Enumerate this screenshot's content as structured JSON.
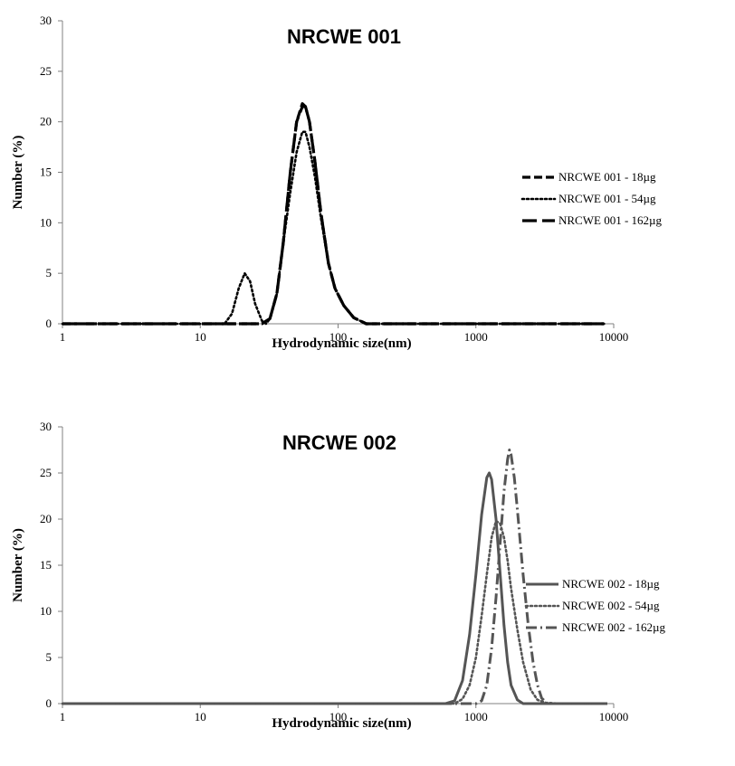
{
  "chart_data": [
    {
      "type": "line",
      "title": "NRCWE 001",
      "xlabel": "Hydrodynamic  size(nm)",
      "ylabel": "Number  (%)",
      "x_scale": "log",
      "xlim": [
        1,
        10000
      ],
      "ylim": [
        0,
        30
      ],
      "x_ticks": [
        "1",
        "10",
        "100",
        "1000",
        "10000"
      ],
      "y_ticks": [
        "0",
        "5",
        "10",
        "15",
        "20",
        "25",
        "30"
      ],
      "grid": false,
      "legend_position": "right",
      "series": [
        {
          "name": "NRCWE 001 - 18µg",
          "color": "#000000",
          "style": "dashed",
          "x": [
            1,
            10,
            28,
            32,
            36,
            40,
            45,
            50,
            55,
            58,
            62,
            68,
            75,
            85,
            95,
            110,
            130,
            160,
            200,
            300,
            1000,
            8500
          ],
          "y": [
            0,
            0,
            0,
            0.5,
            3,
            8,
            15,
            20,
            21.8,
            21.5,
            20,
            16,
            11,
            6,
            3.5,
            1.8,
            0.6,
            0,
            0,
            0,
            0,
            0
          ]
        },
        {
          "name": "NRCWE 001 - 54µg",
          "color": "#000000",
          "style": "dotted",
          "x": [
            1,
            10,
            15,
            17,
            19,
            21,
            23,
            25,
            28,
            30,
            32,
            36,
            40,
            45,
            50,
            55,
            58,
            62,
            68,
            75,
            85,
            95,
            110,
            130,
            160,
            200,
            1000,
            8500
          ],
          "y": [
            0,
            0,
            0,
            1,
            3.5,
            5,
            4.2,
            2,
            0.3,
            0,
            0.5,
            3,
            8,
            13,
            17,
            19,
            19,
            17.5,
            14.5,
            10.5,
            6,
            3.5,
            1.8,
            0.6,
            0,
            0,
            0,
            0
          ]
        },
        {
          "name": "NRCWE 001 - 162µg",
          "color": "#000000",
          "style": "long-dash",
          "x": [
            1,
            10,
            28,
            32,
            36,
            40,
            45,
            50,
            55,
            58,
            62,
            68,
            75,
            85,
            95,
            110,
            130,
            160,
            200,
            300,
            1000,
            8500
          ],
          "y": [
            0,
            0,
            0,
            0.5,
            3,
            8,
            15,
            20,
            21.5,
            21.5,
            20,
            16,
            11,
            6,
            3.5,
            1.8,
            0.6,
            0,
            0,
            0,
            0,
            0
          ]
        }
      ]
    },
    {
      "type": "line",
      "title": "NRCWE 002",
      "xlabel": "Hydrodynamic  size(nm)",
      "ylabel": "Number  (%)",
      "x_scale": "log",
      "xlim": [
        1,
        10000
      ],
      "ylim": [
        0,
        30
      ],
      "x_ticks": [
        "1",
        "10",
        "100",
        "1000",
        "10000"
      ],
      "y_ticks": [
        "0",
        "5",
        "10",
        "15",
        "20",
        "25",
        "30"
      ],
      "grid": false,
      "legend_position": "right",
      "series": [
        {
          "name": "NRCWE 002 - 18µg",
          "color": "#555555",
          "style": "solid",
          "x": [
            1,
            100,
            600,
            700,
            800,
            900,
            1000,
            1100,
            1200,
            1250,
            1300,
            1400,
            1500,
            1600,
            1700,
            1800,
            2000,
            2200,
            9000
          ],
          "y": [
            0,
            0,
            0,
            0.3,
            2.5,
            7.5,
            14,
            20.5,
            24.5,
            25,
            24.3,
            20,
            14,
            8.5,
            4.5,
            2,
            0.4,
            0,
            0
          ]
        },
        {
          "name": "NRCWE 002 - 54µg",
          "color": "#555555",
          "style": "dotted",
          "x": [
            1,
            100,
            700,
            800,
            900,
            1000,
            1100,
            1200,
            1300,
            1400,
            1500,
            1600,
            1700,
            1800,
            2000,
            2200,
            2500,
            2800,
            3200,
            4000,
            9000
          ],
          "y": [
            0,
            0,
            0,
            0.5,
            2,
            5,
            9.5,
            14,
            18,
            19.8,
            19.5,
            18,
            15.5,
            12.5,
            8,
            4.5,
            1.5,
            0.4,
            0.1,
            0,
            0
          ]
        },
        {
          "name": "NRCWE 002 - 162µg",
          "color": "#555555",
          "style": "dash-dot",
          "x": [
            1,
            100,
            1000,
            1100,
            1200,
            1300,
            1400,
            1500,
            1600,
            1700,
            1750,
            1800,
            1900,
            2000,
            2200,
            2400,
            2600,
            2800,
            3000,
            3300,
            9000
          ],
          "y": [
            0,
            0,
            0,
            0.3,
            2,
            6,
            11.5,
            17.5,
            23,
            26.5,
            27.5,
            27,
            24.5,
            21,
            14,
            8.5,
            4.5,
            2,
            0.6,
            0,
            0
          ]
        }
      ]
    }
  ]
}
